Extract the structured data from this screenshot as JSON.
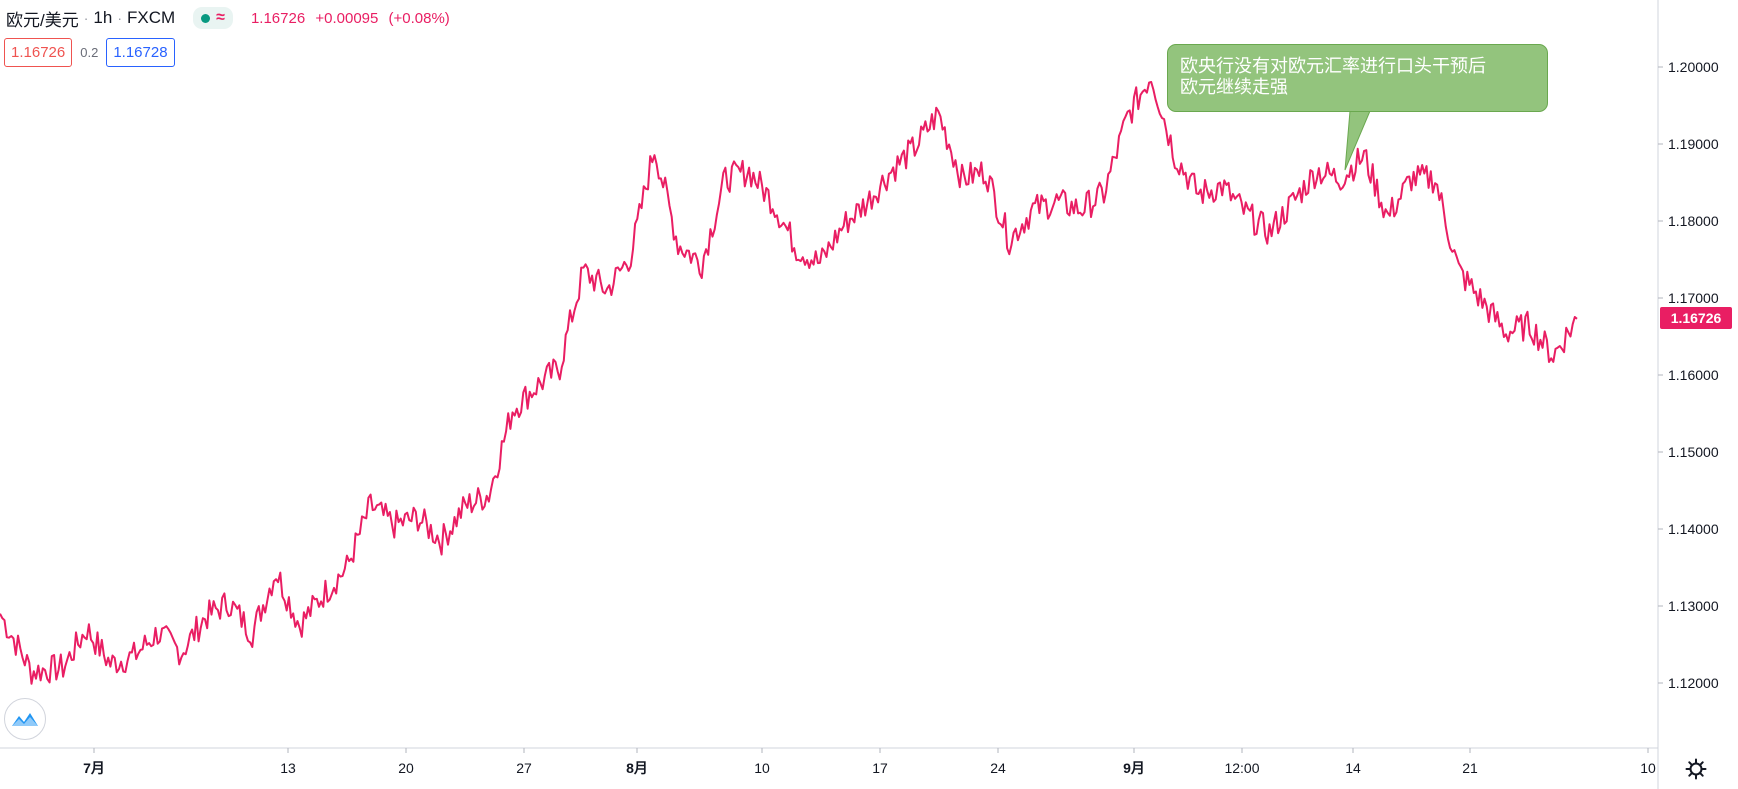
{
  "header": {
    "symbol": "欧元/美元",
    "interval": "1h",
    "exchange": "FXCM",
    "price": "1.16726",
    "change": "+0.00095",
    "change_pct": "(+0.08%)"
  },
  "trade": {
    "sell_price": "1.16726",
    "spread": "0.2",
    "buy_price": "1.16728"
  },
  "annotation": {
    "text_line1": "欧央行没有对欧元汇率进行口头干预后",
    "text_line2": "欧元继续走强"
  },
  "colors": {
    "line": "#e91e63",
    "callout_bg": "#93c47d",
    "sell": "#ef5350",
    "buy": "#2962ff"
  },
  "icons": {
    "logo": "tradingview-logo-icon",
    "settings": "gear-icon"
  },
  "chart_data": {
    "type": "line",
    "symbol": "欧元/美元",
    "ylim": [
      1.113,
      1.208
    ],
    "yticks": [
      "1.20000",
      "1.19000",
      "1.18000",
      "1.17000",
      "1.16000",
      "1.15000",
      "1.14000",
      "1.13000",
      "1.12000"
    ],
    "xticks": [
      "7月",
      "13",
      "20",
      "27",
      "8月",
      "10",
      "17",
      "24",
      "9月",
      "12:00",
      "14",
      "21",
      "10"
    ],
    "last_price": "1.16726",
    "series": [
      {
        "x": [
          0,
          0.02,
          0.04,
          0.055,
          0.07,
          0.085,
          0.1,
          0.115,
          0.13,
          0.145,
          0.16,
          0.175,
          0.19,
          0.205,
          0.22,
          0.235,
          0.25,
          0.265,
          0.28,
          0.295,
          0.31,
          0.325,
          0.34,
          0.355,
          0.36,
          0.37,
          0.385,
          0.4,
          0.415,
          0.43,
          0.445,
          0.46,
          0.475,
          0.49,
          0.505,
          0.52,
          0.535,
          0.55,
          0.565,
          0.58,
          0.595,
          0.61,
          0.625,
          0.64,
          0.655,
          0.67,
          0.685,
          0.7,
          0.715,
          0.73,
          0.745,
          0.76,
          0.775,
          0.79,
          0.805,
          0.82,
          0.835,
          0.85,
          0.865,
          0.88,
          0.895,
          0.91,
          0.925,
          0.94,
          0.955,
          0.97,
          0.985,
          1.0
        ],
        "values": [
          1.129,
          1.1215,
          1.122,
          1.127,
          1.1225,
          1.1235,
          1.1265,
          1.124,
          1.1285,
          1.1305,
          1.1265,
          1.1345,
          1.1275,
          1.1315,
          1.135,
          1.143,
          1.1405,
          1.1415,
          1.1385,
          1.143,
          1.1445,
          1.1555,
          1.1585,
          1.161,
          1.1655,
          1.1735,
          1.171,
          1.1755,
          1.1895,
          1.177,
          1.1745,
          1.1855,
          1.1865,
          1.1825,
          1.1765,
          1.1745,
          1.1795,
          1.1825,
          1.1865,
          1.1895,
          1.194,
          1.1855,
          1.1865,
          1.1775,
          1.1815,
          1.1825,
          1.1815,
          1.1835,
          1.1935,
          1.199,
          1.1885,
          1.1835,
          1.1845,
          1.181,
          1.1785,
          1.1825,
          1.1865,
          1.1855,
          1.1885,
          1.1805,
          1.1855,
          1.1855,
          1.1735,
          1.1695,
          1.1655,
          1.1665,
          1.1625,
          1.1673
        ]
      }
    ]
  }
}
